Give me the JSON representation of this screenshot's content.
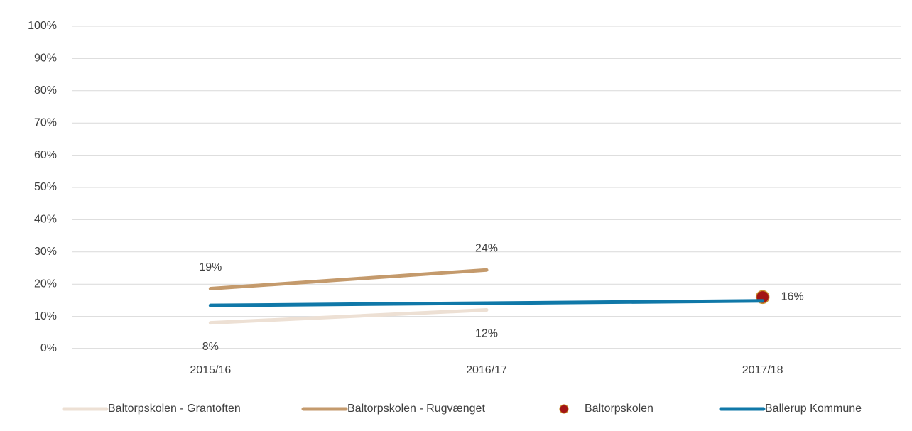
{
  "chart_data": {
    "type": "line",
    "categories": [
      "2015/16",
      "2016/17",
      "2017/18"
    ],
    "series": [
      {
        "name": "Baltorpskolen - Grantoften",
        "color": "#ede0d4",
        "values": [
          8,
          12,
          null
        ],
        "value_labels": [
          "8%",
          "12%",
          null
        ],
        "label_position": "below"
      },
      {
        "name": "Baltorpskolen - Rugvænget",
        "color": "#c49a6c",
        "values": [
          18.6,
          24.4,
          null
        ],
        "value_labels": [
          "19%",
          "24%",
          null
        ],
        "label_position": "above"
      },
      {
        "name": "Baltorpskolen",
        "color": "#a31515",
        "values": [
          null,
          null,
          16
        ],
        "value_labels": [
          null,
          null,
          "16%"
        ],
        "label_position": "right",
        "marker_only": true
      },
      {
        "name": "Ballerup Kommune",
        "color": "#1078a8",
        "values": [
          13.4,
          14.1,
          14.8
        ]
      }
    ],
    "ylim": [
      0,
      100
    ],
    "yticks": [
      {
        "value": 0,
        "label": "0%"
      },
      {
        "value": 10,
        "label": "10%"
      },
      {
        "value": 20,
        "label": "20%"
      },
      {
        "value": 30,
        "label": "30%"
      },
      {
        "value": 40,
        "label": "40%"
      },
      {
        "value": 50,
        "label": "50%"
      },
      {
        "value": 60,
        "label": "60%"
      },
      {
        "value": 70,
        "label": "70%"
      },
      {
        "value": 80,
        "label": "80%"
      },
      {
        "value": 90,
        "label": "90%"
      },
      {
        "value": 100,
        "label": "100%"
      }
    ],
    "grid": true,
    "legend": "bottom"
  }
}
